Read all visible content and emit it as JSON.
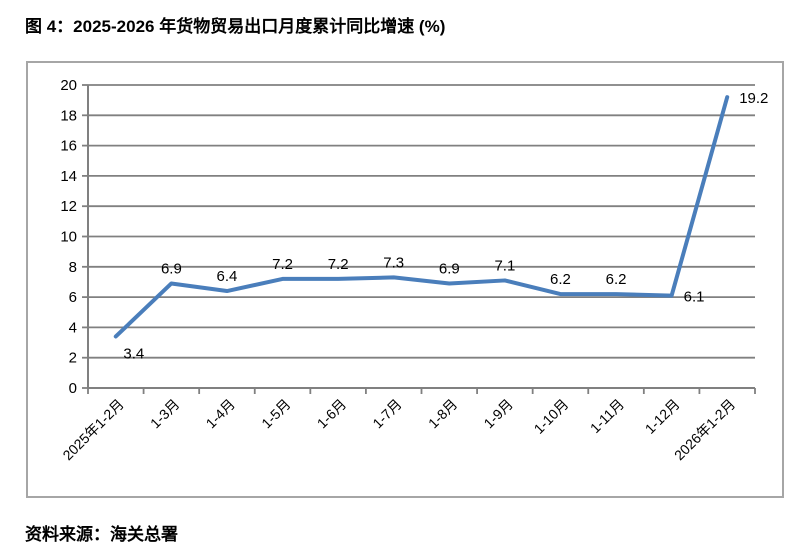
{
  "figure": {
    "title": "图 4：2025-2026 年货物贸易出口月度累计同比增速 (%)",
    "source": "资料来源：海关总署"
  },
  "chart_data": {
    "type": "line",
    "title": "",
    "xlabel": "",
    "ylabel": "",
    "categories": [
      "2025年1-2月",
      "1-3月",
      "1-4月",
      "1-5月",
      "1-6月",
      "1-7月",
      "1-8月",
      "1-9月",
      "1-10月",
      "1-11月",
      "1-12月",
      "2026年1-2月"
    ],
    "values": [
      3.4,
      6.9,
      6.4,
      7.2,
      7.2,
      7.3,
      6.9,
      7.1,
      6.2,
      6.2,
      6.1,
      19.2
    ],
    "data_labels": [
      "3.4",
      "6.9",
      "6.4",
      "7.2",
      "7.2",
      "7.3",
      "6.9",
      "7.1",
      "6.2",
      "6.2",
      "6.1",
      "19.2"
    ],
    "label_placements": [
      "below",
      "above",
      "above",
      "above",
      "above",
      "above",
      "above",
      "above",
      "above",
      "above",
      "right",
      "right"
    ],
    "ylim": [
      0,
      20
    ],
    "ytick_interval": 2,
    "grid": true,
    "legend": "none",
    "x_label_rotation": -45,
    "colors": {
      "line": "#4a7ebb",
      "grid": "#808080",
      "axis": "#808080",
      "frame_border": "#a6a6a6",
      "text": "#000000"
    }
  }
}
